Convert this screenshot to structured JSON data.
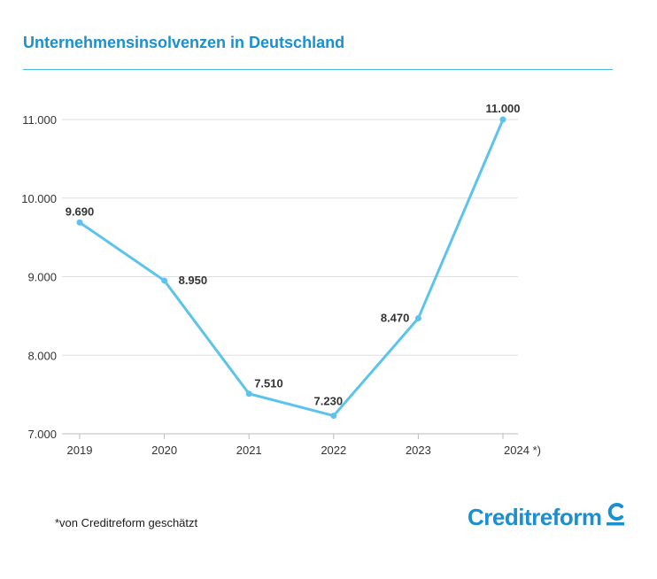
{
  "title": "Unternehmensinsolvenzen in Deutschland",
  "footnote": "*von Creditreform geschätzt",
  "logo": {
    "text": "Creditreform",
    "icon": "creditreform-c-icon"
  },
  "colors": {
    "accent": "#1a8fd1",
    "line": "#5bc3ec",
    "grid": "#dddddd",
    "text": "#333333"
  },
  "chart_data": {
    "type": "line",
    "categories": [
      "2019",
      "2020",
      "2021",
      "2022",
      "2023",
      "2024 *)"
    ],
    "values": [
      9690,
      8950,
      7510,
      7230,
      8470,
      11000
    ],
    "data_labels": [
      "9.690",
      "8.950",
      "7.510",
      "7.230",
      "8.470",
      "11.000"
    ],
    "ylim": [
      7000,
      11000
    ],
    "yticks": [
      7000,
      8000,
      9000,
      10000,
      11000
    ],
    "ytick_labels": [
      "7.000",
      "8.000",
      "9.000",
      "10.000",
      "11.000"
    ],
    "grid": true,
    "legend": "none"
  }
}
